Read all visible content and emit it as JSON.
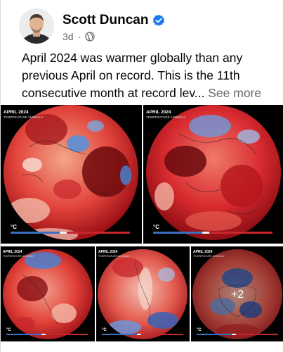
{
  "post": {
    "author": "Scott Duncan",
    "time": "3d",
    "separator": "·",
    "text_main": "April 2024 was warmer globally than any previous April on record. This is the 11th consecutive month at record lev",
    "ellipsis": "...",
    "see_more": "See more"
  },
  "maps": [
    {
      "title": "APRIL 2024",
      "subtitle": "TEMPERATURE ANOMALY",
      "unit": "°C"
    },
    {
      "title": "APRIL 2024",
      "subtitle": "TEMPERATURE ANOMALY",
      "unit": "°C"
    },
    {
      "title": "APRIL 2024",
      "subtitle": "TEMPERATURE ANOMALY",
      "unit": "°C"
    },
    {
      "title": "APRIL 2024",
      "subtitle": "TEMPERATURE ANOMALY",
      "unit": "°C"
    },
    {
      "title": "APRIL 2024",
      "subtitle": "TEMPERATURE ANOMALY",
      "unit": "°C"
    }
  ],
  "more_count": "+2",
  "colors": {
    "verified": "#1877f2",
    "warm": "#d6262e",
    "cool": "#3b6fc4"
  }
}
